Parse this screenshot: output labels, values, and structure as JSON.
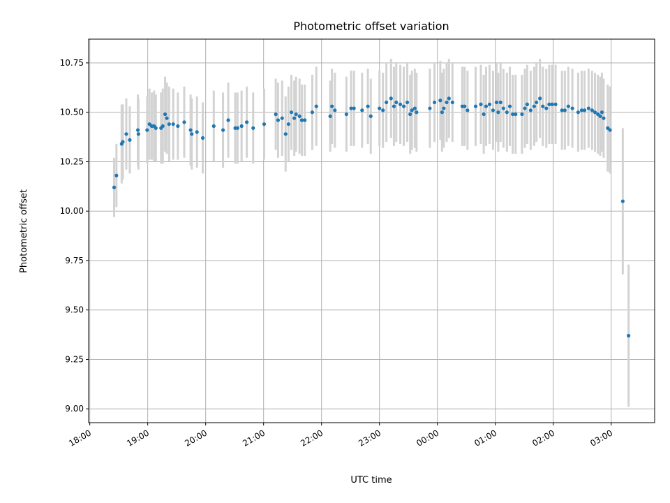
{
  "chart_data": {
    "type": "scatter",
    "title": "Photometric offset variation",
    "xlabel": "UTC time",
    "ylabel": "Photometric offset",
    "x_unit": "hours since 18:00 UTC",
    "xlim": [
      -0.02,
      9.75
    ],
    "ylim": [
      8.93,
      10.87
    ],
    "grid": true,
    "x_ticks": [
      {
        "value": 0,
        "label": "18:00"
      },
      {
        "value": 1,
        "label": "19:00"
      },
      {
        "value": 2,
        "label": "20:00"
      },
      {
        "value": 3,
        "label": "21:00"
      },
      {
        "value": 4,
        "label": "22:00"
      },
      {
        "value": 5,
        "label": "23:00"
      },
      {
        "value": 6,
        "label": "00:00"
      },
      {
        "value": 7,
        "label": "01:00"
      },
      {
        "value": 8,
        "label": "02:00"
      },
      {
        "value": 9,
        "label": "03:00"
      }
    ],
    "y_ticks": [
      {
        "value": 9.0,
        "label": "9.00"
      },
      {
        "value": 9.25,
        "label": "9.25"
      },
      {
        "value": 9.5,
        "label": "9.50"
      },
      {
        "value": 9.75,
        "label": "9.75"
      },
      {
        "value": 10.0,
        "label": "10.00"
      },
      {
        "value": 10.25,
        "label": "10.25"
      },
      {
        "value": 10.5,
        "label": "10.50"
      },
      {
        "value": 10.75,
        "label": "10.75"
      }
    ],
    "point_color": "#1f77b4",
    "errorbar_color": "#d3d3d3",
    "series": [
      {
        "name": "offset",
        "points": [
          [
            0.42,
            10.12,
            0.15
          ],
          [
            0.46,
            10.18,
            0.16
          ],
          [
            0.55,
            10.34,
            0.2
          ],
          [
            0.57,
            10.35,
            0.19
          ],
          [
            0.63,
            10.39,
            0.18
          ],
          [
            0.69,
            10.36,
            0.17
          ],
          [
            0.83,
            10.41,
            0.18
          ],
          [
            0.84,
            10.39,
            0.18
          ],
          [
            0.99,
            10.41,
            0.17
          ],
          [
            1.03,
            10.44,
            0.18
          ],
          [
            1.07,
            10.43,
            0.17
          ],
          [
            1.11,
            10.43,
            0.18
          ],
          [
            1.14,
            10.42,
            0.17
          ],
          [
            1.23,
            10.42,
            0.18
          ],
          [
            1.26,
            10.43,
            0.19
          ],
          [
            1.3,
            10.49,
            0.19
          ],
          [
            1.33,
            10.47,
            0.18
          ],
          [
            1.37,
            10.44,
            0.19
          ],
          [
            1.44,
            10.44,
            0.18
          ],
          [
            1.52,
            10.43,
            0.17
          ],
          [
            1.63,
            10.45,
            0.18
          ],
          [
            1.74,
            10.41,
            0.18
          ],
          [
            1.76,
            10.39,
            0.18
          ],
          [
            1.85,
            10.4,
            0.18
          ],
          [
            1.95,
            10.37,
            0.18
          ],
          [
            2.14,
            10.43,
            0.18
          ],
          [
            2.3,
            10.41,
            0.19
          ],
          [
            2.39,
            10.46,
            0.19
          ],
          [
            2.51,
            10.42,
            0.18
          ],
          [
            2.55,
            10.42,
            0.18
          ],
          [
            2.62,
            10.43,
            0.18
          ],
          [
            2.71,
            10.45,
            0.18
          ],
          [
            2.82,
            10.42,
            0.18
          ],
          [
            3.01,
            10.44,
            0.18
          ],
          [
            3.21,
            10.49,
            0.18
          ],
          [
            3.25,
            10.46,
            0.19
          ],
          [
            3.32,
            10.47,
            0.19
          ],
          [
            3.38,
            10.39,
            0.19
          ],
          [
            3.43,
            10.44,
            0.19
          ],
          [
            3.48,
            10.5,
            0.19
          ],
          [
            3.53,
            10.47,
            0.19
          ],
          [
            3.56,
            10.49,
            0.19
          ],
          [
            3.62,
            10.48,
            0.19
          ],
          [
            3.66,
            10.46,
            0.18
          ],
          [
            3.71,
            10.46,
            0.18
          ],
          [
            3.84,
            10.5,
            0.19
          ],
          [
            3.91,
            10.53,
            0.2
          ],
          [
            4.15,
            10.48,
            0.18
          ],
          [
            4.18,
            10.53,
            0.19
          ],
          [
            4.23,
            10.51,
            0.19
          ],
          [
            4.43,
            10.49,
            0.19
          ],
          [
            4.51,
            10.52,
            0.19
          ],
          [
            4.56,
            10.52,
            0.19
          ],
          [
            4.7,
            10.51,
            0.19
          ],
          [
            4.8,
            10.53,
            0.19
          ],
          [
            4.85,
            10.48,
            0.19
          ],
          [
            5.0,
            10.52,
            0.19
          ],
          [
            5.06,
            10.51,
            0.19
          ],
          [
            5.12,
            10.55,
            0.2
          ],
          [
            5.2,
            10.57,
            0.2
          ],
          [
            5.25,
            10.53,
            0.2
          ],
          [
            5.29,
            10.55,
            0.2
          ],
          [
            5.36,
            10.54,
            0.2
          ],
          [
            5.42,
            10.53,
            0.2
          ],
          [
            5.48,
            10.55,
            0.2
          ],
          [
            5.53,
            10.49,
            0.2
          ],
          [
            5.56,
            10.51,
            0.2
          ],
          [
            5.61,
            10.52,
            0.2
          ],
          [
            5.64,
            10.5,
            0.2
          ],
          [
            5.87,
            10.52,
            0.2
          ],
          [
            5.95,
            10.55,
            0.2
          ],
          [
            6.05,
            10.56,
            0.2
          ],
          [
            6.08,
            10.5,
            0.2
          ],
          [
            6.11,
            10.52,
            0.2
          ],
          [
            6.16,
            10.55,
            0.2
          ],
          [
            6.2,
            10.57,
            0.2
          ],
          [
            6.26,
            10.55,
            0.2
          ],
          [
            6.43,
            10.53,
            0.2
          ],
          [
            6.47,
            10.53,
            0.2
          ],
          [
            6.52,
            10.51,
            0.2
          ],
          [
            6.66,
            10.53,
            0.2
          ],
          [
            6.75,
            10.54,
            0.2
          ],
          [
            6.8,
            10.49,
            0.2
          ],
          [
            6.84,
            10.53,
            0.2
          ],
          [
            6.9,
            10.54,
            0.2
          ],
          [
            6.96,
            10.51,
            0.2
          ],
          [
            7.02,
            10.55,
            0.2
          ],
          [
            7.05,
            10.5,
            0.2
          ],
          [
            7.09,
            10.55,
            0.2
          ],
          [
            7.14,
            10.52,
            0.2
          ],
          [
            7.2,
            10.5,
            0.2
          ],
          [
            7.25,
            10.53,
            0.2
          ],
          [
            7.3,
            10.49,
            0.2
          ],
          [
            7.35,
            10.49,
            0.2
          ],
          [
            7.46,
            10.49,
            0.2
          ],
          [
            7.51,
            10.52,
            0.2
          ],
          [
            7.55,
            10.54,
            0.2
          ],
          [
            7.61,
            10.51,
            0.2
          ],
          [
            7.67,
            10.53,
            0.2
          ],
          [
            7.71,
            10.55,
            0.2
          ],
          [
            7.77,
            10.57,
            0.2
          ],
          [
            7.82,
            10.53,
            0.2
          ],
          [
            7.88,
            10.52,
            0.2
          ],
          [
            7.93,
            10.54,
            0.2
          ],
          [
            7.98,
            10.54,
            0.2
          ],
          [
            8.04,
            10.54,
            0.2
          ],
          [
            8.15,
            10.51,
            0.2
          ],
          [
            8.2,
            10.51,
            0.2
          ],
          [
            8.26,
            10.53,
            0.2
          ],
          [
            8.33,
            10.52,
            0.2
          ],
          [
            8.43,
            10.5,
            0.2
          ],
          [
            8.49,
            10.51,
            0.2
          ],
          [
            8.54,
            10.51,
            0.2
          ],
          [
            8.61,
            10.52,
            0.2
          ],
          [
            8.67,
            10.51,
            0.2
          ],
          [
            8.72,
            10.5,
            0.2
          ],
          [
            8.77,
            10.49,
            0.2
          ],
          [
            8.81,
            10.48,
            0.2
          ],
          [
            8.84,
            10.5,
            0.2
          ],
          [
            8.87,
            10.47,
            0.2
          ],
          [
            8.94,
            10.42,
            0.22
          ],
          [
            8.98,
            10.41,
            0.22
          ],
          [
            9.2,
            10.05,
            0.37
          ],
          [
            9.3,
            9.37,
            0.36
          ]
        ]
      }
    ]
  }
}
